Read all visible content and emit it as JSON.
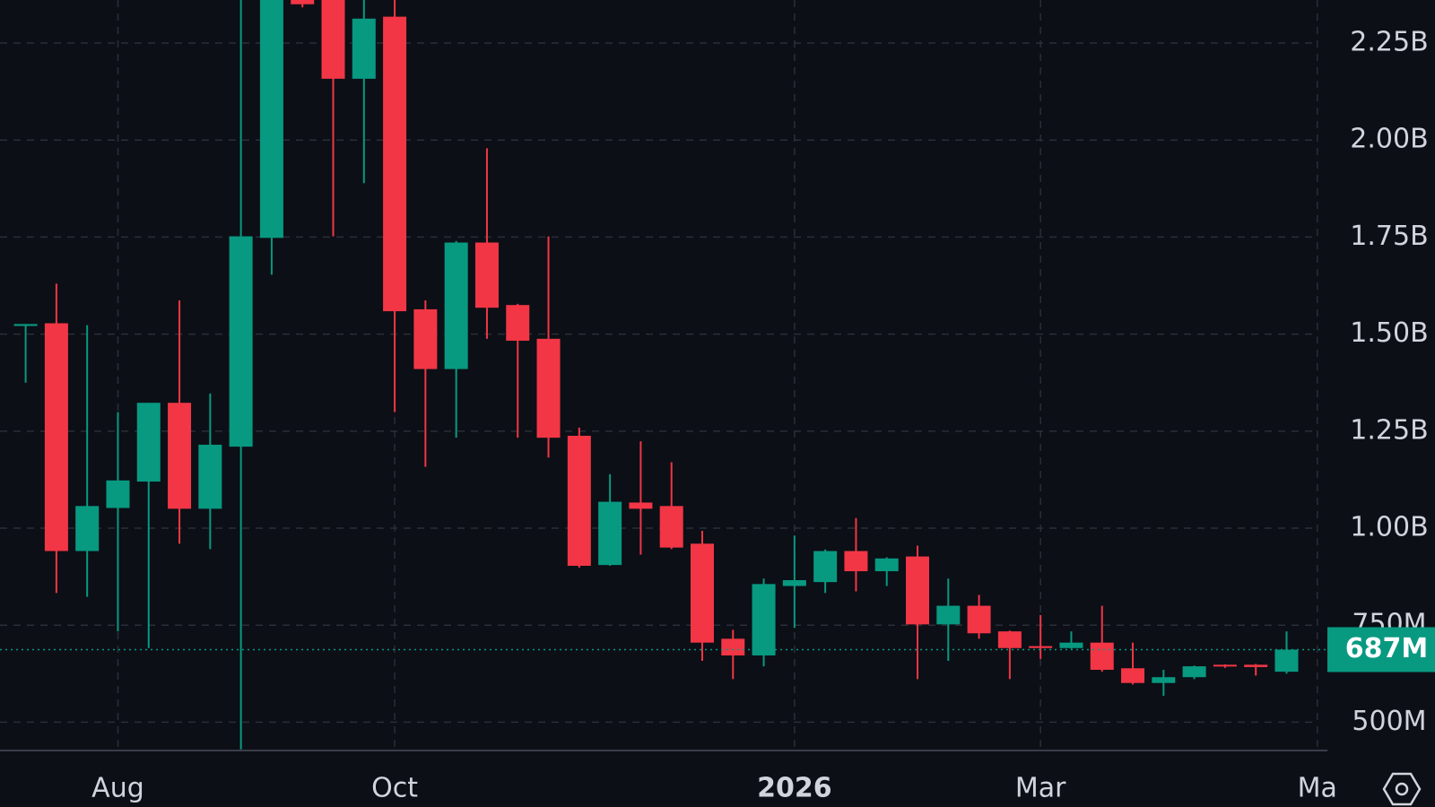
{
  "chart_data": {
    "type": "candlestick",
    "categories": [
      null,
      null,
      null,
      "Aug",
      null,
      null,
      null,
      null,
      null,
      null,
      null,
      null,
      "Oct",
      null,
      null,
      null,
      null,
      null,
      null,
      null,
      null,
      null,
      null,
      null,
      null,
      "2026",
      null,
      null,
      null,
      null,
      null,
      null,
      null,
      "Mar",
      null,
      null,
      null,
      null,
      null,
      null,
      null,
      null,
      "Ma"
    ],
    "open": [
      1521,
      1528,
      941,
      1052,
      1120,
      1323,
      1050,
      1210,
      1748,
      2365,
      2400,
      2158,
      2318,
      1564,
      1410,
      1736,
      1575,
      1488,
      1238,
      905,
      1066,
      1057,
      960,
      715,
      672,
      851,
      861,
      941,
      889,
      927,
      752,
      800,
      734,
      696,
      691,
      705,
      639,
      601,
      616,
      648,
      648,
      630,
      null
    ],
    "high": [
      1526,
      1630,
      1523,
      1299,
      1323,
      1587,
      1347,
      2400,
      2500,
      2380,
      2420,
      2370,
      2365,
      1587,
      1740,
      1979,
      1578,
      1752,
      1259,
      1139,
      1224,
      1170,
      993,
      738,
      870,
      981,
      945,
      1026,
      925,
      955,
      870,
      828,
      736,
      776,
      734,
      800,
      705,
      635,
      646,
      649,
      650,
      734,
      null
    ],
    "low": [
      1375,
      833,
      823,
      734,
      691,
      960,
      946,
      430,
      1653,
      2342,
      1752,
      1889,
      1299,
      1158,
      1233,
      1488,
      1233,
      1182,
      898,
      903,
      932,
      946,
      658,
      611,
      644,
      743,
      833,
      837,
      851,
      611,
      658,
      715,
      611,
      663,
      689,
      630,
      597,
      568,
      611,
      640,
      620,
      625,
      null
    ],
    "close": [
      1526,
      941,
      1057,
      1123,
      1323,
      1050,
      1215,
      1752,
      2450,
      2350,
      2158,
      2313,
      1559,
      1410,
      1736,
      1568,
      1483,
      1233,
      903,
      1068,
      1050,
      950,
      705,
      672,
      856,
      866,
      941,
      889,
      922,
      752,
      800,
      729,
      691,
      691,
      705,
      635,
      601,
      616,
      644,
      644,
      642,
      687,
      null
    ],
    "up_color": "#089981",
    "down_color": "#f23645",
    "ylim": [
      427,
      2361
    ],
    "yticks": [
      {
        "value": 500,
        "label": "500M"
      },
      {
        "value": 750,
        "label": "750M"
      },
      {
        "value": 1000,
        "label": "1.00B"
      },
      {
        "value": 1250,
        "label": "1.25B"
      },
      {
        "value": 1500,
        "label": "1.50B"
      },
      {
        "value": 1750,
        "label": "1.75B"
      },
      {
        "value": 2000,
        "label": "2.00B"
      },
      {
        "value": 2250,
        "label": "2.25B"
      }
    ],
    "last_price": {
      "value": 687,
      "label": "687M"
    },
    "grid": true
  }
}
